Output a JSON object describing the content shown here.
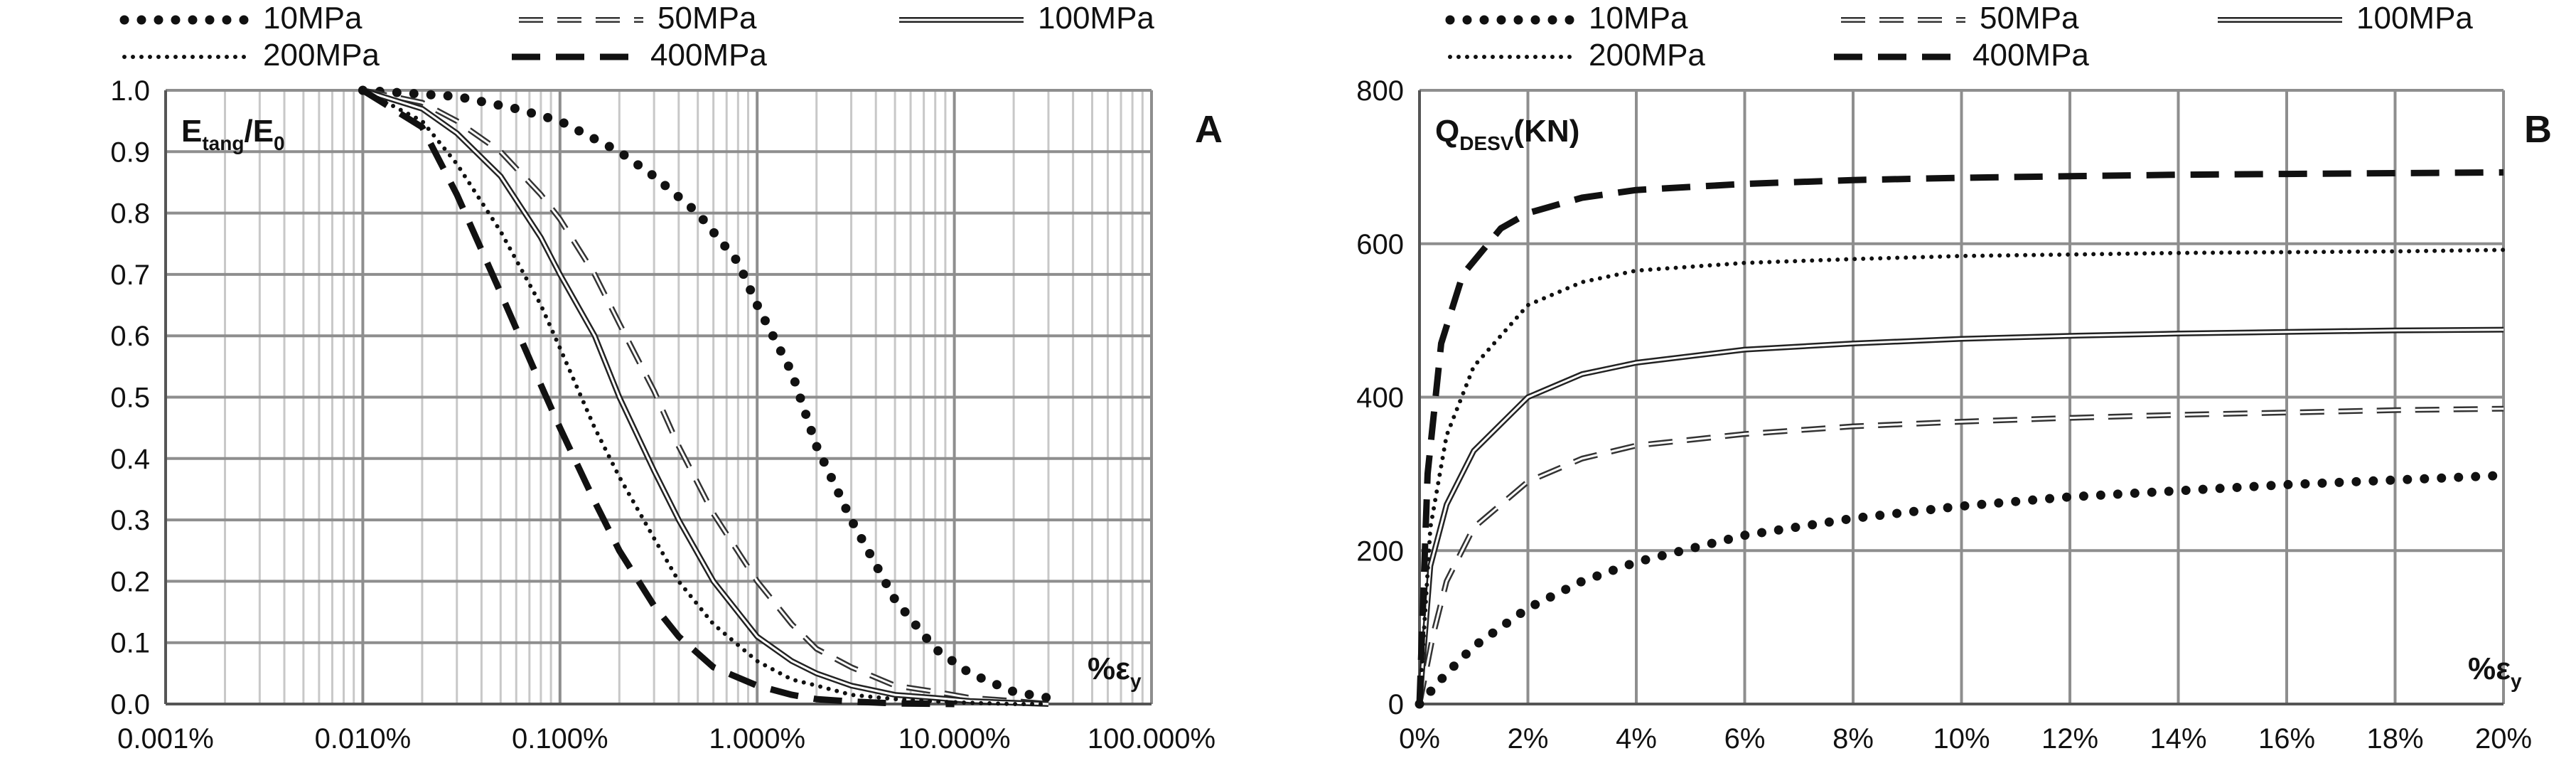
{
  "chart_data": [
    {
      "type": "line",
      "panel": "A",
      "xscale": "log",
      "xlim": [
        0.001,
        100
      ],
      "ylim": [
        0,
        1
      ],
      "ylabel": {
        "main": "E",
        "sub": "tang",
        "tail": "/E",
        "tail_sub": "0"
      },
      "xlabel": {
        "main": "%ε",
        "sub": "y"
      },
      "x_ticks": [
        0.001,
        0.01,
        0.1,
        1,
        10,
        100
      ],
      "x_tick_labels": [
        "0.001%",
        "0.010%",
        "0.100%",
        "1.000%",
        "10.000%",
        "100.000%"
      ],
      "y_ticks": [
        0,
        0.1,
        0.2,
        0.3,
        0.4,
        0.5,
        0.6,
        0.7,
        0.8,
        0.9,
        1
      ],
      "y_tick_labels": [
        "0.0",
        "0.1",
        "0.2",
        "0.3",
        "0.4",
        "0.5",
        "0.6",
        "0.7",
        "0.8",
        "0.9",
        "1.0"
      ],
      "grid": true,
      "legend": [
        "10MPa",
        "50MPa",
        "100MPa",
        "200MPa",
        "400MPa"
      ],
      "series": [
        {
          "name": "10MPa",
          "style": "dotted-heavy",
          "x": [
            0.01,
            0.03,
            0.06,
            0.1,
            0.2,
            0.3,
            0.5,
            0.8,
            1,
            1.5,
            2,
            3,
            5,
            8,
            12,
            20,
            30
          ],
          "values": [
            1,
            0.99,
            0.97,
            0.95,
            0.9,
            0.86,
            0.8,
            0.72,
            0.65,
            0.54,
            0.42,
            0.3,
            0.17,
            0.09,
            0.05,
            0.02,
            0.01
          ]
        },
        {
          "name": "50MPa",
          "style": "dashed-double",
          "x": [
            0.01,
            0.02,
            0.03,
            0.05,
            0.08,
            0.1,
            0.15,
            0.2,
            0.3,
            0.4,
            0.6,
            1,
            1.5,
            2,
            3,
            5,
            8,
            12,
            20,
            30
          ],
          "values": [
            1,
            0.98,
            0.95,
            0.9,
            0.83,
            0.79,
            0.7,
            0.62,
            0.51,
            0.42,
            0.31,
            0.2,
            0.13,
            0.09,
            0.06,
            0.03,
            0.02,
            0.01,
            0.005,
            0.0
          ]
        },
        {
          "name": "100MPa",
          "style": "solid-double",
          "x": [
            0.01,
            0.02,
            0.03,
            0.05,
            0.08,
            0.1,
            0.15,
            0.2,
            0.3,
            0.4,
            0.6,
            1,
            1.5,
            2,
            3,
            5,
            8,
            12,
            20,
            30
          ],
          "values": [
            1,
            0.97,
            0.93,
            0.86,
            0.76,
            0.7,
            0.6,
            0.5,
            0.38,
            0.3,
            0.2,
            0.11,
            0.07,
            0.05,
            0.03,
            0.015,
            0.01,
            0.005,
            0.002,
            0.0
          ]
        },
        {
          "name": "200MPa",
          "style": "dotted-fine",
          "x": [
            0.01,
            0.02,
            0.03,
            0.05,
            0.08,
            0.1,
            0.15,
            0.2,
            0.3,
            0.4,
            0.6,
            1,
            1.5,
            2,
            3,
            5,
            8,
            12,
            20,
            30
          ],
          "values": [
            1,
            0.95,
            0.88,
            0.77,
            0.65,
            0.58,
            0.45,
            0.37,
            0.27,
            0.2,
            0.13,
            0.07,
            0.04,
            0.03,
            0.015,
            0.008,
            0.004,
            0.002,
            0.0,
            0.0
          ]
        },
        {
          "name": "400MPa",
          "style": "dashed-heavy",
          "x": [
            0.01,
            0.02,
            0.03,
            0.05,
            0.08,
            0.1,
            0.15,
            0.2,
            0.3,
            0.4,
            0.6,
            1,
            1.5,
            2,
            3,
            5,
            10
          ],
          "values": [
            1,
            0.94,
            0.83,
            0.67,
            0.52,
            0.45,
            0.33,
            0.25,
            0.16,
            0.11,
            0.06,
            0.03,
            0.015,
            0.008,
            0.004,
            0.001,
            0.0
          ]
        }
      ]
    },
    {
      "type": "line",
      "panel": "B",
      "xscale": "linear",
      "xlim": [
        0,
        20
      ],
      "ylim": [
        0,
        800
      ],
      "ylabel": {
        "main": "Q",
        "sub": "DESV",
        "tail": "(KN)",
        "tail_sub": ""
      },
      "xlabel": {
        "main": "%ε",
        "sub": "y"
      },
      "x_ticks": [
        0,
        2,
        4,
        6,
        8,
        10,
        12,
        14,
        16,
        18,
        20
      ],
      "x_tick_labels": [
        "0%",
        "2%",
        "4%",
        "6%",
        "8%",
        "10%",
        "12%",
        "14%",
        "16%",
        "18%",
        "20%"
      ],
      "y_ticks": [
        0,
        200,
        400,
        600,
        800
      ],
      "y_tick_labels": [
        "0",
        "200",
        "400",
        "600",
        "800"
      ],
      "grid": true,
      "legend": [
        "10MPa",
        "50MPa",
        "100MPa",
        "200MPa",
        "400MPa"
      ],
      "series": [
        {
          "name": "10MPa",
          "style": "dotted-heavy",
          "x": [
            0,
            0.5,
            1,
            2,
            3,
            4,
            6,
            8,
            10,
            12,
            14,
            16,
            18,
            20
          ],
          "values": [
            0,
            40,
            75,
            125,
            160,
            185,
            220,
            242,
            258,
            270,
            278,
            286,
            292,
            298
          ]
        },
        {
          "name": "50MPa",
          "style": "dashed-double",
          "x": [
            0,
            0.25,
            0.5,
            1,
            2,
            3,
            4,
            6,
            8,
            10,
            12,
            14,
            16,
            18,
            20
          ],
          "values": [
            0,
            90,
            160,
            230,
            290,
            320,
            337,
            352,
            362,
            368,
            373,
            377,
            380,
            383,
            385
          ]
        },
        {
          "name": "100MPa",
          "style": "solid-double",
          "x": [
            0,
            0.2,
            0.5,
            1,
            2,
            3,
            4,
            6,
            8,
            10,
            12,
            14,
            16,
            18,
            20
          ],
          "values": [
            0,
            180,
            260,
            330,
            400,
            430,
            445,
            462,
            470,
            476,
            480,
            483,
            485,
            487,
            488
          ]
        },
        {
          "name": "200MPa",
          "style": "dotted-fine",
          "x": [
            0,
            0.2,
            0.5,
            1,
            2,
            3,
            4,
            6,
            8,
            10,
            12,
            14,
            16,
            18,
            20
          ],
          "values": [
            0,
            230,
            350,
            440,
            520,
            550,
            565,
            575,
            580,
            584,
            586,
            588,
            589,
            590,
            592
          ]
        },
        {
          "name": "400MPa",
          "style": "dashed-heavy",
          "x": [
            0,
            0.15,
            0.4,
            0.8,
            1.5,
            2,
            3,
            4,
            6,
            8,
            10,
            12,
            14,
            16,
            18,
            20
          ],
          "values": [
            0,
            300,
            470,
            560,
            620,
            640,
            660,
            670,
            678,
            683,
            686,
            688,
            690,
            691,
            692,
            693
          ]
        }
      ]
    }
  ]
}
